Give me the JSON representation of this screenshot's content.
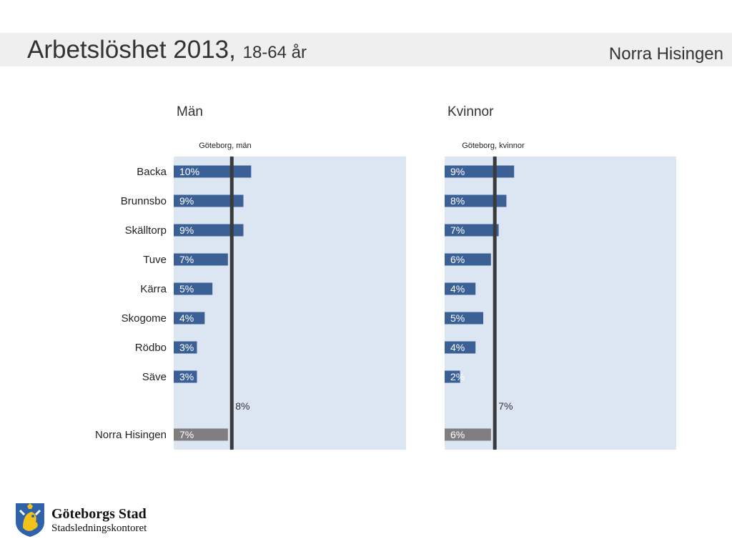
{
  "header": {
    "title": "Arbetslöshet 2013,",
    "subtitle": "18-64 år",
    "region": "Norra Hisingen"
  },
  "chart_data": [
    {
      "type": "bar",
      "title": "Män",
      "categories": [
        "Backa",
        "Brunnsbo",
        "Skälltorp",
        "Tuve",
        "Kärra",
        "Skogome",
        "Rödbo",
        "Säve",
        "Norra Hisingen"
      ],
      "values": [
        10,
        9,
        9,
        7,
        5,
        4,
        3,
        3,
        7
      ],
      "labels": [
        "10%",
        "9%",
        "9%",
        "7%",
        "5%",
        "4%",
        "3%",
        "3%",
        "7%"
      ],
      "xlim": [
        0,
        30
      ],
      "reference": {
        "name": "Göteborg, män",
        "value": 7.5,
        "label": "8%"
      }
    },
    {
      "type": "bar",
      "title": "Kvinnor",
      "categories": [
        "Backa",
        "Brunnsbo",
        "Skälltorp",
        "Tuve",
        "Kärra",
        "Skogome",
        "Rödbo",
        "Säve",
        "Norra Hisingen"
      ],
      "values": [
        9,
        8,
        7,
        6,
        4,
        5,
        4,
        2,
        6
      ],
      "labels": [
        "9%",
        "8%",
        "7%",
        "6%",
        "4%",
        "5%",
        "4%",
        "2%",
        "6%"
      ],
      "xlim": [
        0,
        30
      ],
      "reference": {
        "name": "Göteborg, kvinnor",
        "value": 6.5,
        "label": "7%"
      }
    }
  ],
  "colors": {
    "bar": "#3a6096",
    "total_bar": "#7f7f7f",
    "panel_bg": "#dce6f2",
    "reference_line": "#3a3a3a"
  },
  "footer": {
    "org": "Göteborgs Stad",
    "dept": "Stadsledningskontoret",
    "logo_icon": "goteborg-lion-crest-icon"
  }
}
